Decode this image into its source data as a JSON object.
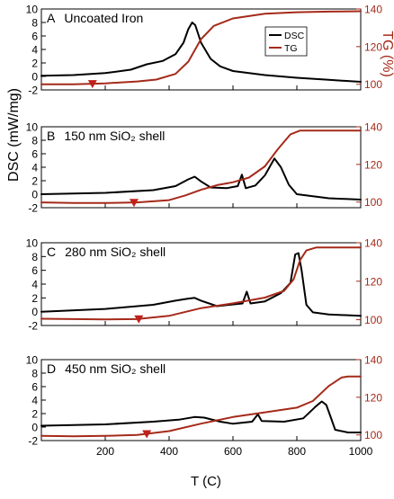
{
  "figure": {
    "ylabel_left": "DSC (mW/mg)",
    "ylabel_right": "TG (%)",
    "xlabel": "T (C)",
    "legend": {
      "placement": "top-right of panel A",
      "items": [
        "DSC",
        "TG"
      ]
    },
    "colors": {
      "dsc": "#000000",
      "tg": "#a52a1a",
      "right_axis": "#a52a1a",
      "marker": "#c0201a"
    }
  },
  "chart_data": [
    {
      "type": "line",
      "panel": "A",
      "label": "Uncoated Iron",
      "x_range": [
        0,
        1000
      ],
      "x_ticks": [
        200,
        400,
        600,
        800,
        1000
      ],
      "y_left_range": [
        -2,
        10
      ],
      "y_left_ticks": [
        -2,
        0,
        2,
        4,
        6,
        8,
        10
      ],
      "y_right_range": [
        97,
        140
      ],
      "y_right_ticks": [
        100,
        120,
        140
      ],
      "marker_x": 160,
      "series": [
        {
          "name": "DSC",
          "axis": "left",
          "points": [
            [
              0,
              0.1
            ],
            [
              100,
              0.2
            ],
            [
              200,
              0.5
            ],
            [
              280,
              1
            ],
            [
              330,
              1.8
            ],
            [
              380,
              2.3
            ],
            [
              420,
              3.3
            ],
            [
              445,
              5
            ],
            [
              460,
              7
            ],
            [
              472,
              8
            ],
            [
              482,
              7.6
            ],
            [
              500,
              5
            ],
            [
              530,
              2.6
            ],
            [
              560,
              1.5
            ],
            [
              600,
              0.8
            ],
            [
              700,
              0.2
            ],
            [
              800,
              -0.2
            ],
            [
              900,
              -0.5
            ],
            [
              1000,
              -0.8
            ]
          ]
        },
        {
          "name": "TG",
          "axis": "right",
          "points": [
            [
              0,
              100
            ],
            [
              100,
              100
            ],
            [
              200,
              100.5
            ],
            [
              300,
              101.5
            ],
            [
              360,
              102.5
            ],
            [
              420,
              105.5
            ],
            [
              460,
              112
            ],
            [
              500,
              124
            ],
            [
              540,
              131
            ],
            [
              600,
              135
            ],
            [
              700,
              137.5
            ],
            [
              800,
              138.3
            ],
            [
              900,
              138.6
            ],
            [
              1000,
              138.8
            ]
          ]
        }
      ]
    },
    {
      "type": "line",
      "panel": "B",
      "label": "150 nm SiO₂ shell",
      "x_range": [
        0,
        1000
      ],
      "x_ticks": [
        200,
        400,
        600,
        800,
        1000
      ],
      "y_left_range": [
        -2,
        10
      ],
      "y_left_ticks": [
        -2,
        0,
        2,
        4,
        6,
        8,
        10
      ],
      "y_right_range": [
        97,
        140
      ],
      "y_right_ticks": [
        100,
        120,
        140
      ],
      "marker_x": 290,
      "series": [
        {
          "name": "DSC",
          "axis": "left",
          "points": [
            [
              0,
              0
            ],
            [
              200,
              0.2
            ],
            [
              350,
              0.6
            ],
            [
              420,
              1.2
            ],
            [
              460,
              2.2
            ],
            [
              480,
              2.6
            ],
            [
              500,
              1.9
            ],
            [
              530,
              1
            ],
            [
              580,
              0.9
            ],
            [
              615,
              1.2
            ],
            [
              628,
              2.9
            ],
            [
              640,
              0.9
            ],
            [
              670,
              1.3
            ],
            [
              700,
              2.8
            ],
            [
              730,
              5.3
            ],
            [
              750,
              4
            ],
            [
              775,
              1.4
            ],
            [
              800,
              0
            ],
            [
              900,
              -0.6
            ],
            [
              1000,
              -0.8
            ]
          ]
        },
        {
          "name": "TG",
          "axis": "right",
          "points": [
            [
              0,
              99.8
            ],
            [
              100,
              99.5
            ],
            [
              200,
              99.5
            ],
            [
              300,
              99.8
            ],
            [
              400,
              101
            ],
            [
              450,
              103.5
            ],
            [
              500,
              106.5
            ],
            [
              550,
              109
            ],
            [
              600,
              110.5
            ],
            [
              650,
              113
            ],
            [
              700,
              119
            ],
            [
              740,
              128
            ],
            [
              780,
              136
            ],
            [
              810,
              138
            ],
            [
              1000,
              138
            ]
          ]
        }
      ]
    },
    {
      "type": "line",
      "panel": "C",
      "label": "280 nm SiO₂ shell",
      "x_range": [
        0,
        1000
      ],
      "x_ticks": [
        200,
        400,
        600,
        800,
        1000
      ],
      "y_left_range": [
        -2,
        10
      ],
      "y_left_ticks": [
        -2,
        0,
        2,
        4,
        6,
        8,
        10
      ],
      "y_right_range": [
        97,
        140
      ],
      "y_right_ticks": [
        100,
        120,
        140
      ],
      "marker_x": 305,
      "series": [
        {
          "name": "DSC",
          "axis": "left",
          "points": [
            [
              0,
              0
            ],
            [
              200,
              0.4
            ],
            [
              350,
              1
            ],
            [
              420,
              1.6
            ],
            [
              460,
              1.9
            ],
            [
              480,
              2
            ],
            [
              500,
              1.6
            ],
            [
              550,
              0.8
            ],
            [
              630,
              1.2
            ],
            [
              643,
              2.9
            ],
            [
              655,
              1.2
            ],
            [
              700,
              1.5
            ],
            [
              750,
              2.7
            ],
            [
              780,
              4.2
            ],
            [
              795,
              8.3
            ],
            [
              805,
              8.5
            ],
            [
              815,
              6
            ],
            [
              830,
              1
            ],
            [
              850,
              -0.1
            ],
            [
              900,
              -0.4
            ],
            [
              1000,
              -0.6
            ]
          ]
        },
        {
          "name": "TG",
          "axis": "right",
          "points": [
            [
              0,
              100.5
            ],
            [
              100,
              100.3
            ],
            [
              200,
              100.2
            ],
            [
              300,
              100.3
            ],
            [
              400,
              102
            ],
            [
              500,
              106
            ],
            [
              600,
              108.5
            ],
            [
              700,
              111.5
            ],
            [
              760,
              115
            ],
            [
              790,
              121
            ],
            [
              810,
              131
            ],
            [
              830,
              136
            ],
            [
              860,
              137.5
            ],
            [
              1000,
              137.5
            ]
          ]
        }
      ]
    },
    {
      "type": "line",
      "panel": "D",
      "label": "450 nm SiO₂ shell",
      "x_range": [
        0,
        1000
      ],
      "x_ticks": [
        200,
        400,
        600,
        800,
        1000
      ],
      "y_left_range": [
        -2,
        10
      ],
      "y_left_ticks": [
        -2,
        0,
        2,
        4,
        6,
        8,
        10
      ],
      "y_right_range": [
        97,
        140
      ],
      "y_right_ticks": [
        100,
        120,
        140
      ],
      "marker_x": 330,
      "series": [
        {
          "name": "DSC",
          "axis": "left",
          "points": [
            [
              0,
              0.2
            ],
            [
              200,
              0.4
            ],
            [
              350,
              0.8
            ],
            [
              430,
              1.1
            ],
            [
              480,
              1.5
            ],
            [
              510,
              1.4
            ],
            [
              560,
              0.8
            ],
            [
              600,
              0.5
            ],
            [
              660,
              0.8
            ],
            [
              678,
              1.9
            ],
            [
              690,
              0.9
            ],
            [
              760,
              0.8
            ],
            [
              820,
              1.3
            ],
            [
              860,
              3.1
            ],
            [
              878,
              3.8
            ],
            [
              892,
              3.3
            ],
            [
              905,
              1.6
            ],
            [
              920,
              -0.4
            ],
            [
              960,
              -0.8
            ],
            [
              1000,
              -0.8
            ]
          ]
        },
        {
          "name": "TG",
          "axis": "right",
          "points": [
            [
              0,
              99.5
            ],
            [
              100,
              99.3
            ],
            [
              200,
              99.5
            ],
            [
              300,
              100
            ],
            [
              400,
              102
            ],
            [
              500,
              106
            ],
            [
              600,
              109.5
            ],
            [
              700,
              112
            ],
            [
              800,
              114.5
            ],
            [
              850,
              118
            ],
            [
              900,
              126
            ],
            [
              940,
              130.5
            ],
            [
              960,
              131
            ],
            [
              1000,
              131
            ]
          ]
        }
      ]
    }
  ]
}
